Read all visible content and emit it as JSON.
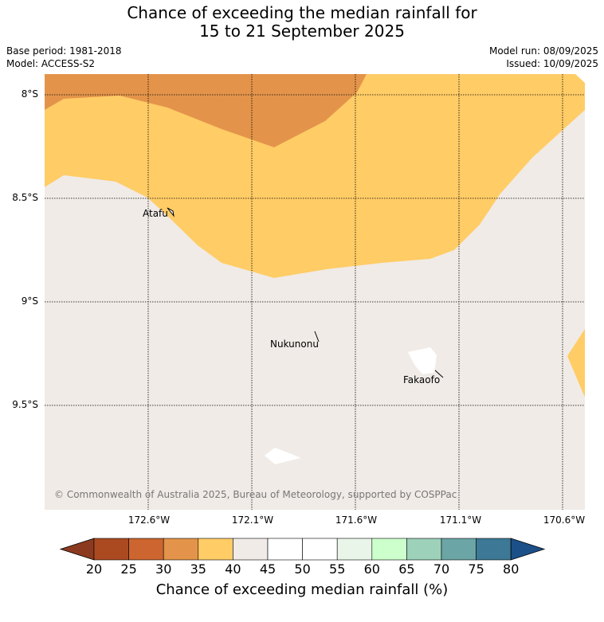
{
  "title": {
    "line1": "Chance of exceeding the median rainfall for",
    "line2": "15 to 21 September 2025"
  },
  "info": {
    "base_period": "Base period: 1981-2018",
    "model": "Model: ACCESS-S2",
    "model_run": "Model run: 08/09/2025",
    "issued": "Issued: 10/09/2025"
  },
  "map": {
    "lat_labels": [
      "8°S",
      "8.5°S",
      "9°S",
      "9.5°S"
    ],
    "lon_labels": [
      "172.6°W",
      "172.1°W",
      "171.6°W",
      "171.1°W",
      "170.6°W"
    ],
    "places": [
      "Atafu",
      "Nukunonu",
      "Fakaofo"
    ],
    "copyright": "© Commonwealth of Australia 2025, Bureau of Meteorology, supported by COSPPac",
    "colors": {
      "below_35": "#e3944a",
      "35_40": "#ffcc66",
      "40_45": "#f0ebe6",
      "land": "#ffffff"
    }
  },
  "colorbar": {
    "ticks": [
      "20",
      "25",
      "30",
      "35",
      "40",
      "45",
      "50",
      "55",
      "60",
      "65",
      "70",
      "75",
      "80"
    ],
    "colors": [
      "#ab4a21",
      "#cc652f",
      "#e3944a",
      "#ffcc66",
      "#f0ebe6",
      "#ffffff",
      "#ffffff",
      "#e8f5e8",
      "#ccffcc",
      "#9dd1ba",
      "#6ba5a5",
      "#3d7896"
    ],
    "under_color": "#8c3a1f",
    "over_color": "#1c5088",
    "label": "Chance of exceeding median rainfall (%)"
  }
}
